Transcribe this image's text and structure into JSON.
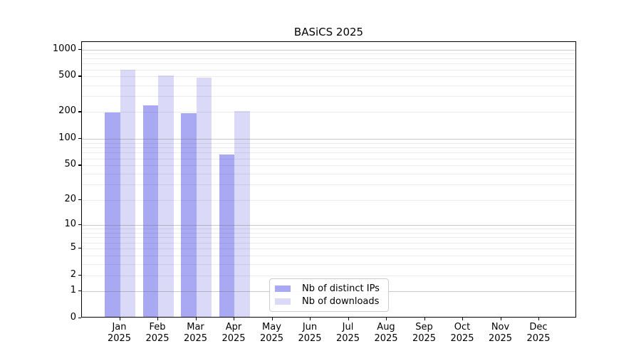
{
  "chart_data": {
    "type": "bar",
    "title": "BASiCS 2025",
    "x_months": [
      "Jan",
      "Feb",
      "Mar",
      "Apr",
      "May",
      "Jun",
      "Jul",
      "Aug",
      "Sep",
      "Oct",
      "Nov",
      "Dec"
    ],
    "x_year": "2025",
    "series": [
      {
        "name": "Nb of distinct IPs",
        "color": "#a9a9f3",
        "values": [
          190,
          228,
          188,
          64,
          null,
          null,
          null,
          null,
          null,
          null,
          null,
          null
        ]
      },
      {
        "name": "Nb of downloads",
        "color": "#dadaf8",
        "values": [
          575,
          494,
          470,
          196,
          null,
          null,
          null,
          null,
          null,
          null,
          null,
          null
        ]
      }
    ],
    "yscale": "log1p",
    "ylim": [
      0,
      1215
    ],
    "yticks": [
      0,
      1,
      2,
      5,
      10,
      20,
      50,
      100,
      200,
      500,
      1000
    ],
    "grid": "on",
    "legend_position": "lower center-left inside plot",
    "colors": {
      "axis": "#000000",
      "grid_major": "#c9c9c9",
      "grid_minor": "#ededed",
      "legend_border": "#cccccc",
      "background": "#ffffff"
    }
  }
}
